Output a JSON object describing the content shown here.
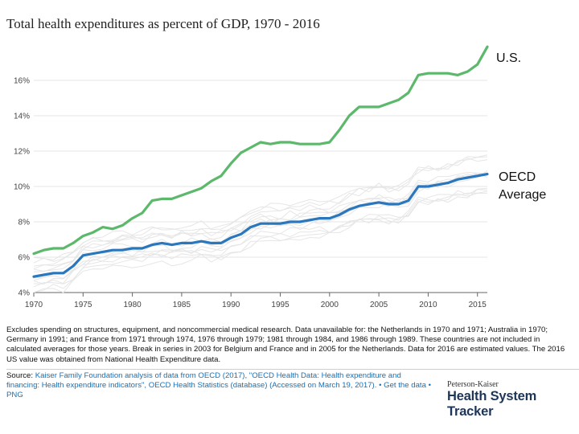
{
  "chart_data": {
    "type": "line",
    "title": "Total health expenditures as percent of GDP, 1970 - 2016",
    "xlabel": "",
    "ylabel": "",
    "xlim": [
      1970,
      2016
    ],
    "ylim": [
      4,
      18
    ],
    "x_ticks": [
      "1970",
      "1975",
      "1980",
      "1985",
      "1990",
      "1995",
      "2000",
      "2005",
      "2010",
      "2015"
    ],
    "y_ticks": [
      "4%",
      "6%",
      "8%",
      "10%",
      "12%",
      "14%",
      "16%"
    ],
    "x": [
      1970,
      1971,
      1972,
      1973,
      1974,
      1975,
      1976,
      1977,
      1978,
      1979,
      1980,
      1981,
      1982,
      1983,
      1984,
      1985,
      1986,
      1987,
      1988,
      1989,
      1990,
      1991,
      1992,
      1993,
      1994,
      1995,
      1996,
      1997,
      1998,
      1999,
      2000,
      2001,
      2002,
      2003,
      2004,
      2005,
      2006,
      2007,
      2008,
      2009,
      2010,
      2011,
      2012,
      2013,
      2014,
      2015,
      2016
    ],
    "series": [
      {
        "name": "U.S.",
        "color": "#5cb86a",
        "values": [
          6.2,
          6.4,
          6.5,
          6.5,
          6.8,
          7.2,
          7.4,
          7.7,
          7.6,
          7.8,
          8.2,
          8.5,
          9.2,
          9.3,
          9.3,
          9.5,
          9.7,
          9.9,
          10.3,
          10.6,
          11.3,
          11.9,
          12.2,
          12.5,
          12.4,
          12.5,
          12.5,
          12.4,
          12.4,
          12.4,
          12.5,
          13.2,
          14.0,
          14.5,
          14.5,
          14.5,
          14.7,
          14.9,
          15.3,
          16.3,
          16.4,
          16.4,
          16.4,
          16.3,
          16.5,
          16.9,
          17.9
        ]
      },
      {
        "name": "OECD Average",
        "color": "#2a77bd",
        "values": [
          4.9,
          5.0,
          5.1,
          5.1,
          5.5,
          6.1,
          6.2,
          6.3,
          6.4,
          6.4,
          6.5,
          6.5,
          6.7,
          6.8,
          6.7,
          6.8,
          6.8,
          6.9,
          6.8,
          6.8,
          7.1,
          7.3,
          7.7,
          7.9,
          7.9,
          7.9,
          8.0,
          8.0,
          8.1,
          8.2,
          8.2,
          8.4,
          8.7,
          8.9,
          9.0,
          9.1,
          9.0,
          9.0,
          9.2,
          10.0,
          10.0,
          10.1,
          10.2,
          10.4,
          10.5,
          10.6,
          10.7
        ]
      }
    ],
    "background_series_count": 13,
    "background_color": "#e6e6e6",
    "annotations": [
      "U.S.",
      "OECD Average"
    ]
  },
  "annotations": {
    "us_label": "U.S.",
    "oecd_line1": "OECD",
    "oecd_line2": "Average"
  },
  "notes": "Excludes spending on structures, equipment, and noncommercial medical research. Data unavailable for: the Netherlands in 1970 and 1971; Australia in 1970; Germany in 1991; and France from 1971 through 1974, 1976 through 1979; 1981 through 1984, and 1986 through 1989. These countries are not included in calculated averages for those years. Break in series in 2003 for Belgium and France and in 2005 for the Netherlands. Data for 2016 are estimated values. The 2016 US value was obtained from National Health Expenditure data.",
  "source": {
    "label": "Source: ",
    "text": "Kaiser Family Foundation analysis of data from OECD (2017), \"OECD Health Data: Health expenditure and financing: Health expenditure indicators\", OECD Health Statistics (database) (Accessed on March 19, 2017).",
    "sep": " • ",
    "get_data": "Get the data",
    "png": "PNG"
  },
  "brand": {
    "top": "Peterson-Kaiser",
    "main": "Health System Tracker"
  }
}
